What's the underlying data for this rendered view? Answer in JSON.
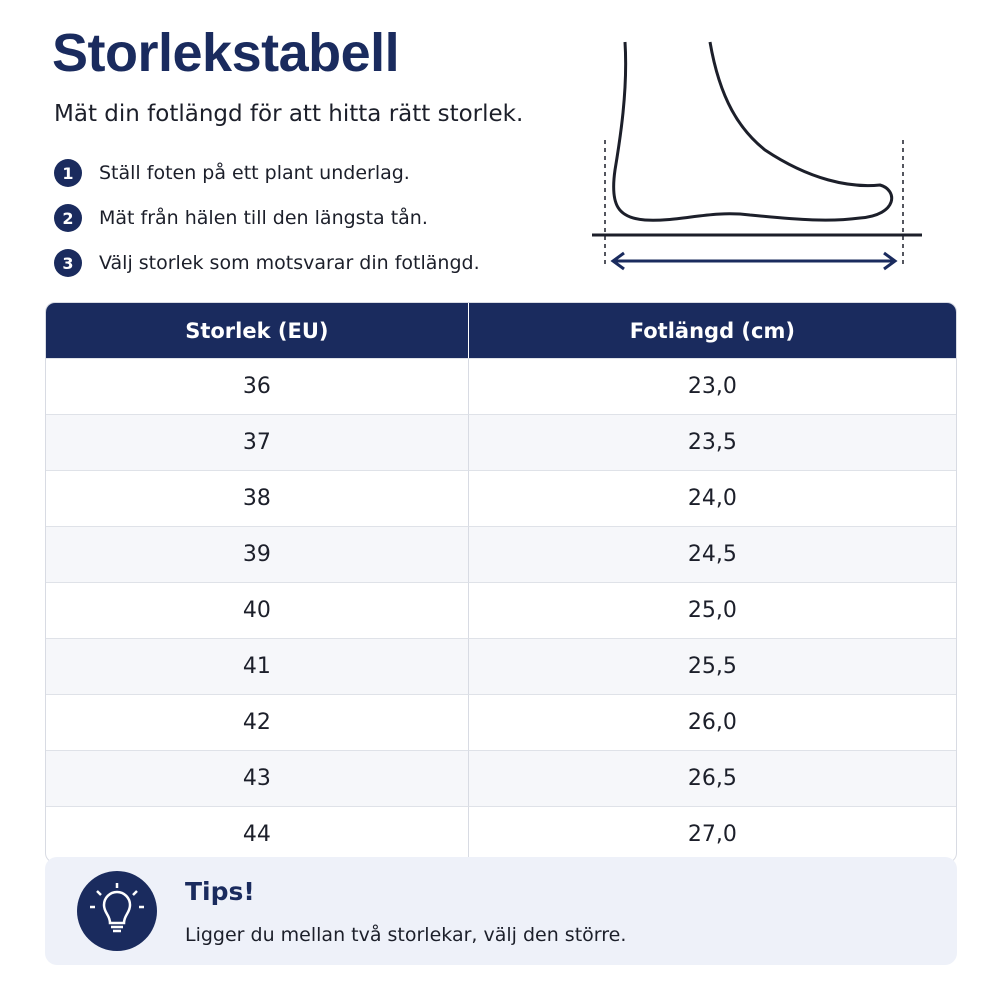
{
  "header": {
    "title": "Storlekstabell",
    "subtitle": "Mät din fotlängd för att hitta rätt storlek."
  },
  "steps": [
    {
      "number": "1",
      "text": "Ställ foten på ett plant underlag."
    },
    {
      "number": "2",
      "text": "Mät från hälen till den längsta tån."
    },
    {
      "number": "3",
      "text": "Välj storlek som motsvarar din fotlängd."
    }
  ],
  "table": {
    "columns": [
      "Storlek (EU)",
      "Fotlängd (cm)"
    ],
    "rows": [
      [
        "36",
        "23,0"
      ],
      [
        "37",
        "23,5"
      ],
      [
        "38",
        "24,0"
      ],
      [
        "39",
        "24,5"
      ],
      [
        "40",
        "25,0"
      ],
      [
        "41",
        "25,5"
      ],
      [
        "42",
        "26,0"
      ],
      [
        "43",
        "26,5"
      ],
      [
        "44",
        "27,0"
      ]
    ]
  },
  "tip": {
    "title": "Tips!",
    "text": "Ligger du mellan två storlekar, välj den större."
  }
}
